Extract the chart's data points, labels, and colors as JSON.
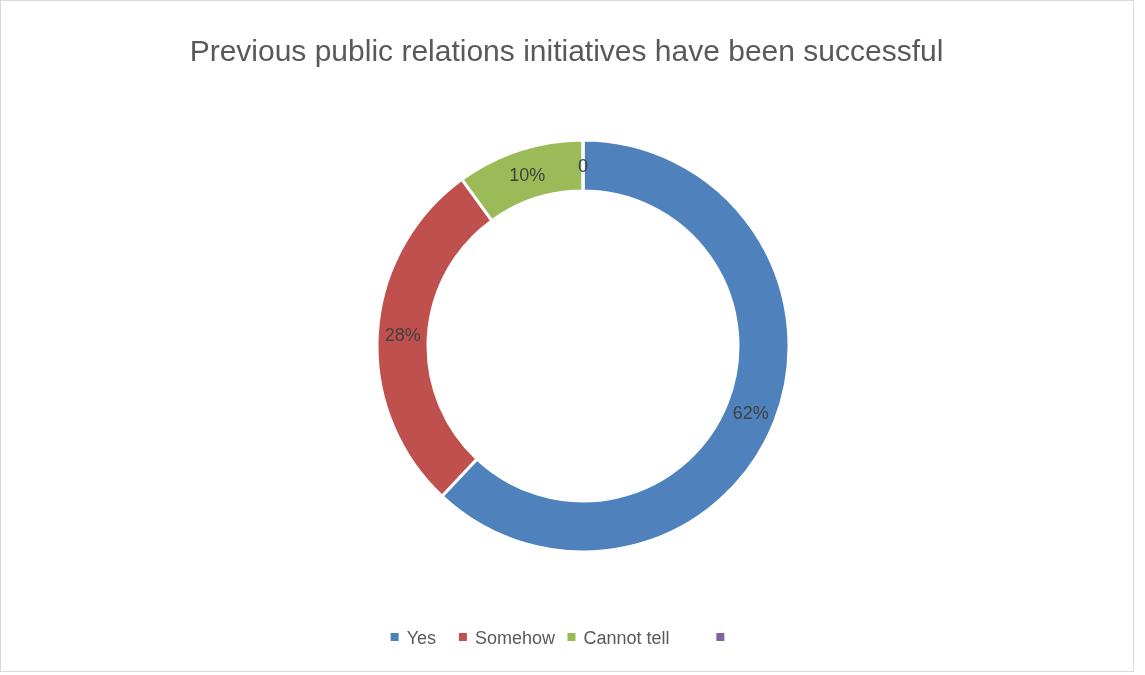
{
  "chart_data": {
    "type": "donut",
    "title": "Previous public relations initiatives have been successful",
    "categories": [
      "Yes",
      "Somehow",
      "Cannot tell",
      null
    ],
    "values": [
      62,
      28,
      10,
      0
    ],
    "value_labels": [
      "62%",
      "28%",
      "10%",
      "0"
    ],
    "colors": [
      "#4f81bd",
      "#c0504d",
      "#9bbb59",
      "#8064a2"
    ],
    "legend": "bottom"
  }
}
